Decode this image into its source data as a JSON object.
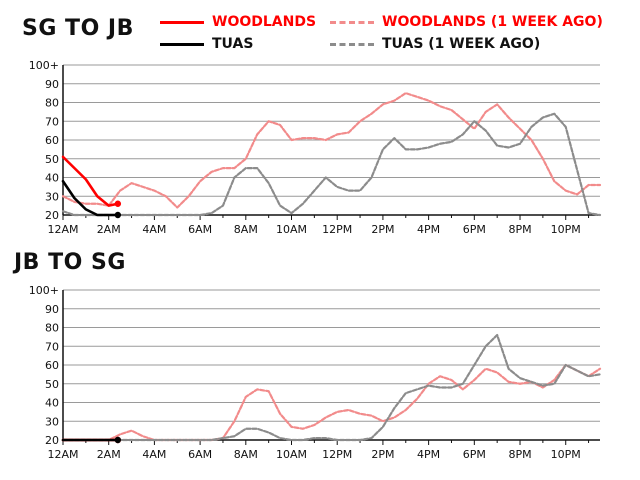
{
  "colors": {
    "woodlands": "#ff0000",
    "tuas": "#000000",
    "woodlands_prev": "#f28b8b",
    "tuas_prev": "#8c8c8c",
    "grid": "#9a9a9a"
  },
  "legend": {
    "woodlands": "WOODLANDS",
    "tuas": "TUAS",
    "woodlands_prev": "WOODLANDS (1 WEEK AGO)",
    "tuas_prev": "TUAS (1 WEEK AGO)"
  },
  "chart_data": [
    {
      "type": "line",
      "title": "SG TO JB",
      "xlabel": "",
      "ylabel": "",
      "xlim": [
        0,
        23.5
      ],
      "ylim": [
        20,
        100
      ],
      "yticks": [
        {
          "v": 100,
          "label": "100+"
        },
        {
          "v": 90,
          "label": "90"
        },
        {
          "v": 80,
          "label": "80"
        },
        {
          "v": 70,
          "label": "70"
        },
        {
          "v": 60,
          "label": "60"
        },
        {
          "v": 50,
          "label": "50"
        },
        {
          "v": 40,
          "label": "40"
        },
        {
          "v": 30,
          "label": "30"
        },
        {
          "v": 20,
          "label": "20"
        }
      ],
      "xticks": [
        {
          "v": 0,
          "label": "12AM"
        },
        {
          "v": 2,
          "label": "2AM"
        },
        {
          "v": 4,
          "label": "4AM"
        },
        {
          "v": 6,
          "label": "6AM"
        },
        {
          "v": 8,
          "label": "8AM"
        },
        {
          "v": 10,
          "label": "10AM"
        },
        {
          "v": 12,
          "label": "12PM"
        },
        {
          "v": 14,
          "label": "2PM"
        },
        {
          "v": 16,
          "label": "4PM"
        },
        {
          "v": 18,
          "label": "6PM"
        },
        {
          "v": 20,
          "label": "8PM"
        },
        {
          "v": 22,
          "label": "10PM"
        }
      ],
      "series": [
        {
          "name": "WOODLANDS (1 WEEK AGO)",
          "key": "woodlands_prev",
          "style": "dashed",
          "x": [
            0,
            0.5,
            1,
            1.5,
            2,
            2.5,
            3,
            3.5,
            4,
            4.5,
            5,
            5.5,
            6,
            6.5,
            7,
            7.5,
            8,
            8.5,
            9,
            9.5,
            10,
            10.5,
            11,
            11.5,
            12,
            12.5,
            13,
            13.5,
            14,
            14.5,
            15,
            15.5,
            16,
            16.5,
            17,
            17.5,
            18,
            18.5,
            19,
            19.5,
            20,
            20.5,
            21,
            21.5,
            22,
            22.5,
            23,
            23.5
          ],
          "values": [
            30,
            27,
            26,
            26,
            25,
            33,
            37,
            35,
            33,
            30,
            24,
            30,
            38,
            43,
            45,
            45,
            50,
            63,
            70,
            68,
            60,
            61,
            61,
            60,
            63,
            64,
            70,
            74,
            79,
            81,
            85,
            83,
            81,
            78,
            76,
            71,
            66,
            75,
            79,
            72,
            66,
            60,
            50,
            38,
            33,
            31,
            36,
            36
          ]
        },
        {
          "name": "TUAS (1 WEEK AGO)",
          "key": "tuas_prev",
          "style": "dashed",
          "x": [
            0,
            0.5,
            1,
            1.5,
            2,
            2.5,
            3,
            3.5,
            4,
            4.5,
            5,
            5.5,
            6,
            6.5,
            7,
            7.5,
            8,
            8.5,
            9,
            9.5,
            10,
            10.5,
            11,
            11.5,
            12,
            12.5,
            13,
            13.5,
            14,
            14.5,
            15,
            15.5,
            16,
            16.5,
            17,
            17.5,
            18,
            18.5,
            19,
            19.5,
            20,
            20.5,
            21,
            21.5,
            22,
            22.5,
            23,
            23.5
          ],
          "values": [
            22,
            20,
            20,
            20,
            20,
            20,
            20,
            20,
            20,
            20,
            20,
            20,
            20,
            21,
            25,
            40,
            45,
            45,
            37,
            25,
            21,
            26,
            33,
            40,
            35,
            33,
            33,
            40,
            55,
            61,
            55,
            55,
            56,
            58,
            59,
            63,
            70,
            65,
            57,
            56,
            58,
            67,
            72,
            74,
            67,
            44,
            21,
            20
          ]
        },
        {
          "name": "WOODLANDS",
          "key": "woodlands",
          "style": "solid",
          "x": [
            0,
            0.5,
            1,
            1.5,
            2,
            2.4
          ],
          "values": [
            51,
            45,
            39,
            30,
            25,
            26
          ]
        },
        {
          "name": "TUAS",
          "key": "tuas",
          "style": "solid",
          "x": [
            0,
            0.5,
            1,
            1.5,
            2,
            2.4
          ],
          "values": [
            38,
            29,
            23,
            20,
            20,
            20
          ]
        }
      ]
    },
    {
      "type": "line",
      "title": "JB TO SG",
      "xlabel": "",
      "ylabel": "",
      "xlim": [
        0,
        23.5
      ],
      "ylim": [
        20,
        100
      ],
      "yticks": [
        {
          "v": 100,
          "label": "100+"
        },
        {
          "v": 90,
          "label": "90"
        },
        {
          "v": 80,
          "label": "80"
        },
        {
          "v": 70,
          "label": "70"
        },
        {
          "v": 60,
          "label": "60"
        },
        {
          "v": 50,
          "label": "50"
        },
        {
          "v": 40,
          "label": "40"
        },
        {
          "v": 30,
          "label": "30"
        },
        {
          "v": 20,
          "label": "20"
        }
      ],
      "xticks": [
        {
          "v": 0,
          "label": "12AM"
        },
        {
          "v": 2,
          "label": "2AM"
        },
        {
          "v": 4,
          "label": "4AM"
        },
        {
          "v": 6,
          "label": "6AM"
        },
        {
          "v": 8,
          "label": "8AM"
        },
        {
          "v": 10,
          "label": "10AM"
        },
        {
          "v": 12,
          "label": "12PM"
        },
        {
          "v": 14,
          "label": "2PM"
        },
        {
          "v": 16,
          "label": "4PM"
        },
        {
          "v": 18,
          "label": "6PM"
        },
        {
          "v": 20,
          "label": "8PM"
        },
        {
          "v": 22,
          "label": "10PM"
        }
      ],
      "series": [
        {
          "name": "WOODLANDS (1 WEEK AGO)",
          "key": "woodlands_prev",
          "style": "dashed",
          "x": [
            0,
            0.5,
            1,
            1.5,
            2,
            2.5,
            3,
            3.5,
            4,
            4.5,
            5,
            5.5,
            6,
            6.5,
            7,
            7.5,
            8,
            8.5,
            9,
            9.5,
            10,
            10.5,
            11,
            11.5,
            12,
            12.5,
            13,
            13.5,
            14,
            14.5,
            15,
            15.5,
            16,
            16.5,
            17,
            17.5,
            18,
            18.5,
            19,
            19.5,
            20,
            20.5,
            21,
            21.5,
            22,
            22.5,
            23,
            23.5
          ],
          "values": [
            20,
            20,
            20,
            20,
            20,
            23,
            25,
            22,
            20,
            20,
            20,
            20,
            20,
            20,
            21,
            30,
            43,
            47,
            46,
            34,
            27,
            26,
            28,
            32,
            35,
            36,
            34,
            33,
            30,
            32,
            36,
            42,
            50,
            54,
            52,
            47,
            52,
            58,
            56,
            51,
            50,
            51,
            48,
            52,
            60,
            57,
            54,
            58
          ]
        },
        {
          "name": "TUAS (1 WEEK AGO)",
          "key": "tuas_prev",
          "style": "dashed",
          "x": [
            0,
            0.5,
            1,
            1.5,
            2,
            2.5,
            3,
            3.5,
            4,
            4.5,
            5,
            5.5,
            6,
            6.5,
            7,
            7.5,
            8,
            8.5,
            9,
            9.5,
            10,
            10.5,
            11,
            11.5,
            12,
            12.5,
            13,
            13.5,
            14,
            14.5,
            15,
            15.5,
            16,
            16.5,
            17,
            17.5,
            18,
            18.5,
            19,
            19.5,
            20,
            20.5,
            21,
            21.5,
            22,
            22.5,
            23,
            23.5
          ],
          "values": [
            20,
            20,
            20,
            20,
            20,
            20,
            20,
            20,
            20,
            20,
            20,
            20,
            20,
            20,
            21,
            22,
            26,
            26,
            24,
            21,
            20,
            20,
            21,
            21,
            20,
            20,
            20,
            21,
            27,
            37,
            45,
            47,
            49,
            48,
            48,
            50,
            60,
            70,
            76,
            58,
            53,
            51,
            49,
            50,
            60,
            57,
            54,
            55
          ]
        },
        {
          "name": "WOODLANDS",
          "key": "woodlands",
          "style": "solid",
          "x": [
            0,
            0.5,
            1,
            1.5,
            2,
            2.4
          ],
          "values": [
            20,
            20,
            20,
            20,
            20,
            20
          ]
        },
        {
          "name": "TUAS",
          "key": "tuas",
          "style": "solid",
          "x": [
            0,
            0.5,
            1,
            1.5,
            2,
            2.4
          ],
          "values": [
            20,
            20,
            20,
            20,
            20,
            20
          ]
        }
      ]
    }
  ]
}
